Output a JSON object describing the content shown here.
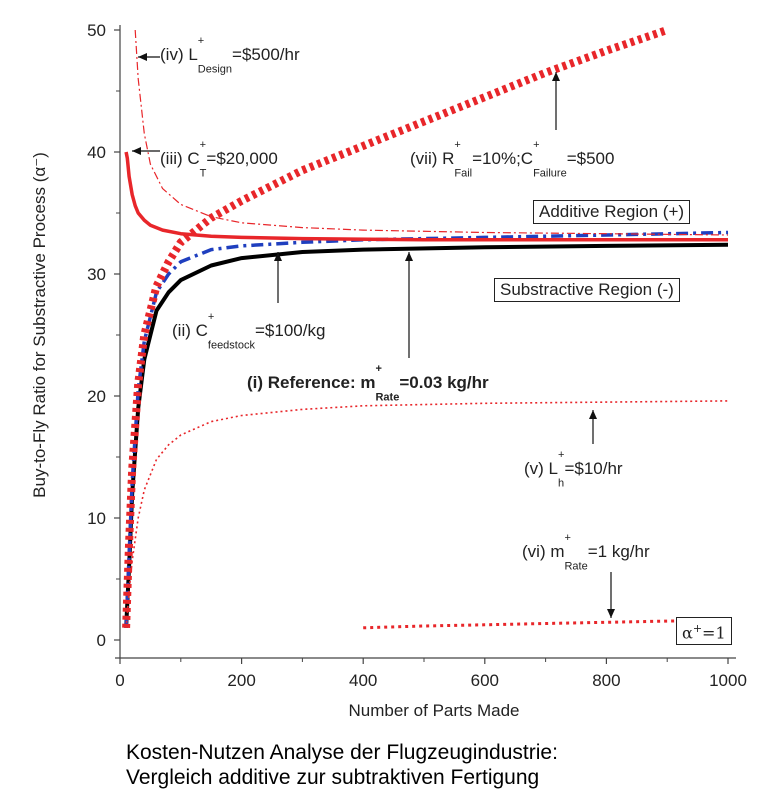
{
  "caption": {
    "line1": "Kosten-Nutzen Analyse der Flugzeugindustrie:",
    "line2": "Vergleich additive zur subtraktiven Fertigung"
  },
  "colors": {
    "reference": "#000000",
    "feedstock": "#1f3fbf",
    "red": "#e8262a",
    "axis": "#444444"
  },
  "chart_data": {
    "type": "line",
    "title": "",
    "xlabel": "Number of Parts Made",
    "ylabel": "Buy-to-Fly Ratio for Substractive Process (α⁻)",
    "xlim": [
      0,
      1000
    ],
    "ylim": [
      0,
      50
    ],
    "xticks": [
      "0",
      "200",
      "400",
      "600",
      "800",
      "1000"
    ],
    "yticks": [
      "0",
      "10",
      "20",
      "30",
      "40",
      "50"
    ],
    "grid": false,
    "series": [
      {
        "id": "reference",
        "style": "solid-black",
        "x": [
          10,
          15,
          20,
          30,
          40,
          60,
          80,
          100,
          150,
          200,
          300,
          400,
          600,
          800,
          1000
        ],
        "y": [
          1,
          6,
          12,
          19,
          23,
          27,
          28.5,
          29.5,
          30.7,
          31.3,
          31.8,
          32,
          32.2,
          32.3,
          32.4
        ]
      },
      {
        "id": "feedstock",
        "style": "dashdot-blue",
        "x": [
          10,
          15,
          20,
          30,
          40,
          60,
          80,
          100,
          150,
          200,
          300,
          400,
          600,
          800,
          1000
        ],
        "y": [
          1,
          7,
          13,
          20.5,
          24.5,
          28.5,
          30,
          31,
          32,
          32.3,
          32.6,
          32.8,
          33,
          33.2,
          33.4
        ]
      },
      {
        "id": "C_T",
        "style": "solid-red",
        "x": [
          10,
          12,
          15,
          20,
          25,
          30,
          40,
          50,
          70,
          100,
          150,
          200,
          300,
          500,
          700,
          1000
        ],
        "y": [
          40,
          39.5,
          38,
          36.5,
          35.6,
          35,
          34.4,
          34,
          33.6,
          33.3,
          33.1,
          33,
          32.9,
          32.8,
          32.8,
          32.8
        ]
      },
      {
        "id": "L_design",
        "style": "dashdot-thin-red",
        "x": [
          25,
          30,
          40,
          50,
          70,
          100,
          150,
          200,
          300,
          400,
          600,
          800,
          1000
        ],
        "y": [
          50,
          46,
          41.5,
          39,
          37,
          35.7,
          34.7,
          34.2,
          33.8,
          33.6,
          33.4,
          33.3,
          33.2
        ]
      },
      {
        "id": "L_h",
        "style": "dotted-thin-red",
        "x": [
          10,
          15,
          20,
          30,
          40,
          60,
          80,
          100,
          150,
          200,
          300,
          400,
          600,
          800,
          1000
        ],
        "y": [
          1,
          4,
          6.5,
          10,
          12.3,
          14.8,
          16,
          16.8,
          17.9,
          18.4,
          18.9,
          19.2,
          19.4,
          19.5,
          19.6
        ]
      },
      {
        "id": "m_rate_1",
        "style": "dotted-red",
        "x": [
          400,
          500,
          600,
          700,
          800,
          900,
          1000
        ],
        "y": [
          1.0,
          1.15,
          1.25,
          1.35,
          1.45,
          1.55,
          1.65
        ]
      },
      {
        "id": "R_fail",
        "style": "thick-dotted-red",
        "x": [
          10,
          15,
          20,
          30,
          40,
          60,
          80,
          100,
          150,
          200,
          300,
          400,
          500,
          600,
          700,
          800,
          900
        ],
        "y": [
          1,
          8,
          14,
          21,
          25,
          29,
          31,
          32.6,
          34.6,
          36,
          38.5,
          40.5,
          42.5,
          44.5,
          46.5,
          48.3,
          50
        ]
      }
    ],
    "annotations": [
      {
        "id": "ann-iv",
        "text": "(iv) L⁺Design=$500/hr"
      },
      {
        "id": "ann-iii",
        "text": "(iii) C⁺T=$20,000"
      },
      {
        "id": "ann-vii",
        "text": "(vii) R⁺Fail=10%;C⁺Failure=$500"
      },
      {
        "id": "ann-ii",
        "text": "(ii) C⁺feedstock=$100/kg"
      },
      {
        "id": "ann-i",
        "text": "(i) Reference: m⁺Rate=0.03 kg/hr"
      },
      {
        "id": "ann-v",
        "text": "(v) L⁺h=$10/hr"
      },
      {
        "id": "ann-vi",
        "text": "(vi) m⁺Rate=1 kg/hr"
      }
    ],
    "region_labels": {
      "additive": "Additive Region (+)",
      "substractive": "Substractive Region (-)"
    },
    "alpha_box": "α⁺=1"
  },
  "labels": {
    "iv": {
      "pre": "(iv) L",
      "sup": "+",
      "sub": "Design",
      "post": "=$500/hr"
    },
    "iii": {
      "pre": "(iii) C",
      "sup": "+",
      "sub": "T",
      "post": "=$20,000"
    },
    "vii": {
      "pre": "(vii) R",
      "sup": "+",
      "sub": "Fail",
      "mid": "=10%;C",
      "sup2": "+",
      "sub2": "Failure",
      "post": "=$500"
    },
    "ii": {
      "pre": "(ii) C",
      "sup": "+",
      "sub": "feedstock",
      "post": "=$100/kg"
    },
    "i": {
      "pre": "(i) Reference: m",
      "sup": "+",
      "sub": "Rate",
      "post": "=0.03 kg/hr"
    },
    "v": {
      "pre": "(v) L",
      "sup": "+",
      "sub": "h",
      "post": "=$10/hr"
    },
    "vi": {
      "pre": "(vi) m",
      "sup": "+",
      "sub": "Rate",
      "post": "=1 kg/hr"
    },
    "alpha": {
      "pre": "α",
      "sup": "+",
      "post": "=1"
    }
  }
}
